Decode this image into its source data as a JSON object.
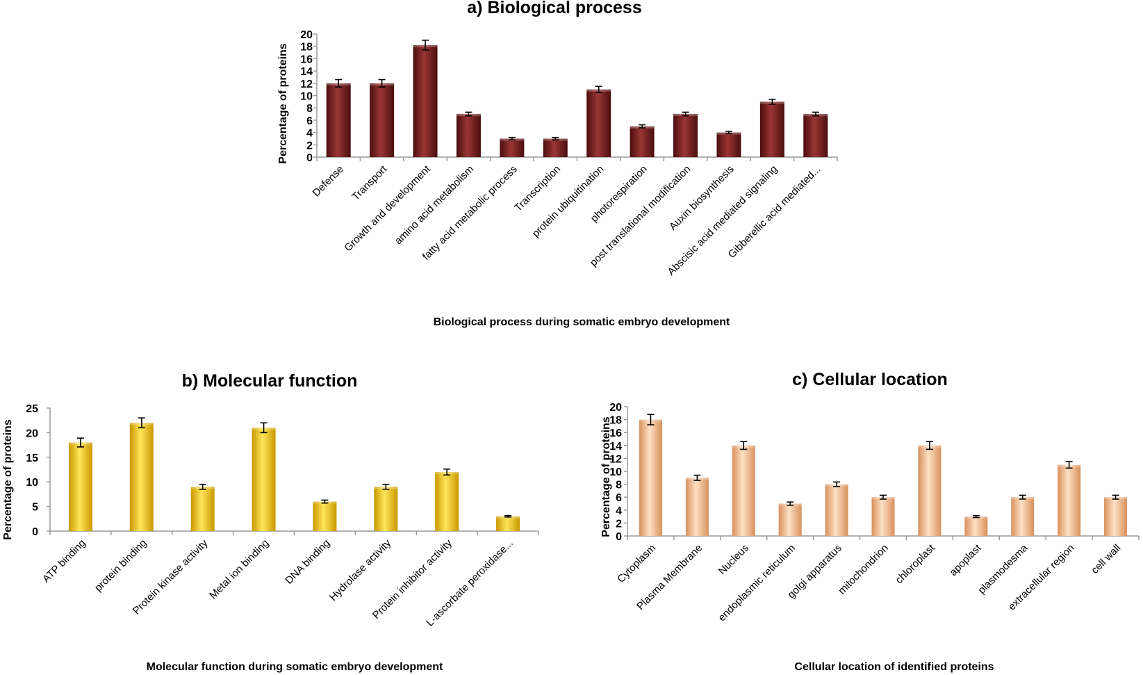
{
  "chart_data": [
    {
      "type": "bar",
      "title": "a) Biological process",
      "xlabel": "Biological process during somatic embryo development",
      "ylabel": "Percentage of proteins",
      "ylim": [
        0,
        20
      ],
      "yticks": [
        0,
        2,
        4,
        6,
        8,
        10,
        12,
        14,
        16,
        18,
        20
      ],
      "categories": [
        "Defense",
        "Transport",
        "Growth and development",
        "amino acid metabolism",
        "fatty acid metabolic process",
        "Transcription",
        "protein ubiquitination",
        "photorespiration",
        "post translational modification",
        "Auxin biosynthesis",
        "Abscisic acid mediated signaling",
        "Gibberellic acid mediated..."
      ],
      "values": [
        12,
        12,
        18.2,
        7,
        3,
        3,
        11,
        5,
        7,
        4,
        9,
        7
      ],
      "errors": [
        0.6,
        0.6,
        0.8,
        0.3,
        0.2,
        0.2,
        0.5,
        0.25,
        0.3,
        0.2,
        0.4,
        0.3
      ],
      "color": "#7a2020",
      "legend": "none",
      "grid": false
    },
    {
      "type": "bar",
      "title": "b) Molecular function",
      "xlabel": "Molecular function during somatic embryo development",
      "ylabel": "Percentage of proteins",
      "ylim": [
        0,
        25
      ],
      "yticks": [
        0,
        5,
        10,
        15,
        20,
        25
      ],
      "categories": [
        "ATP binding",
        "protein binding",
        "Protein kinase activity",
        "Metal ion binding",
        "DNA binding",
        "Hydrolase activity",
        "Protein inhibitor activity",
        "L-ascorbate peroxidase..."
      ],
      "values": [
        18,
        22,
        9,
        21,
        6,
        9,
        12,
        3
      ],
      "errors": [
        0.9,
        1.0,
        0.5,
        1.0,
        0.3,
        0.5,
        0.6,
        0.15
      ],
      "color": "#f2c200",
      "legend": "none",
      "grid": false
    },
    {
      "type": "bar",
      "title": "c) Cellular location",
      "xlabel": "Cellular location of identified proteins",
      "ylabel": "Percentage of proteins",
      "ylim": [
        0,
        20
      ],
      "yticks": [
        0,
        2,
        4,
        6,
        8,
        10,
        12,
        14,
        16,
        18,
        20
      ],
      "categories": [
        "Cytoplasm",
        "Plasma Membrane",
        "Nucleus",
        "endoplasmic reticulum",
        "golgi apparatus",
        "mitochondrion",
        "chloroplast",
        "apoplast",
        "plasmodesma",
        "extracellular region",
        "cell wall"
      ],
      "values": [
        18,
        9,
        14,
        5,
        8,
        6,
        14,
        3,
        6,
        11,
        6
      ],
      "errors": [
        0.8,
        0.4,
        0.6,
        0.25,
        0.35,
        0.3,
        0.6,
        0.15,
        0.3,
        0.5,
        0.3
      ],
      "color": "#f2b98c",
      "legend": "none",
      "grid": false
    }
  ]
}
